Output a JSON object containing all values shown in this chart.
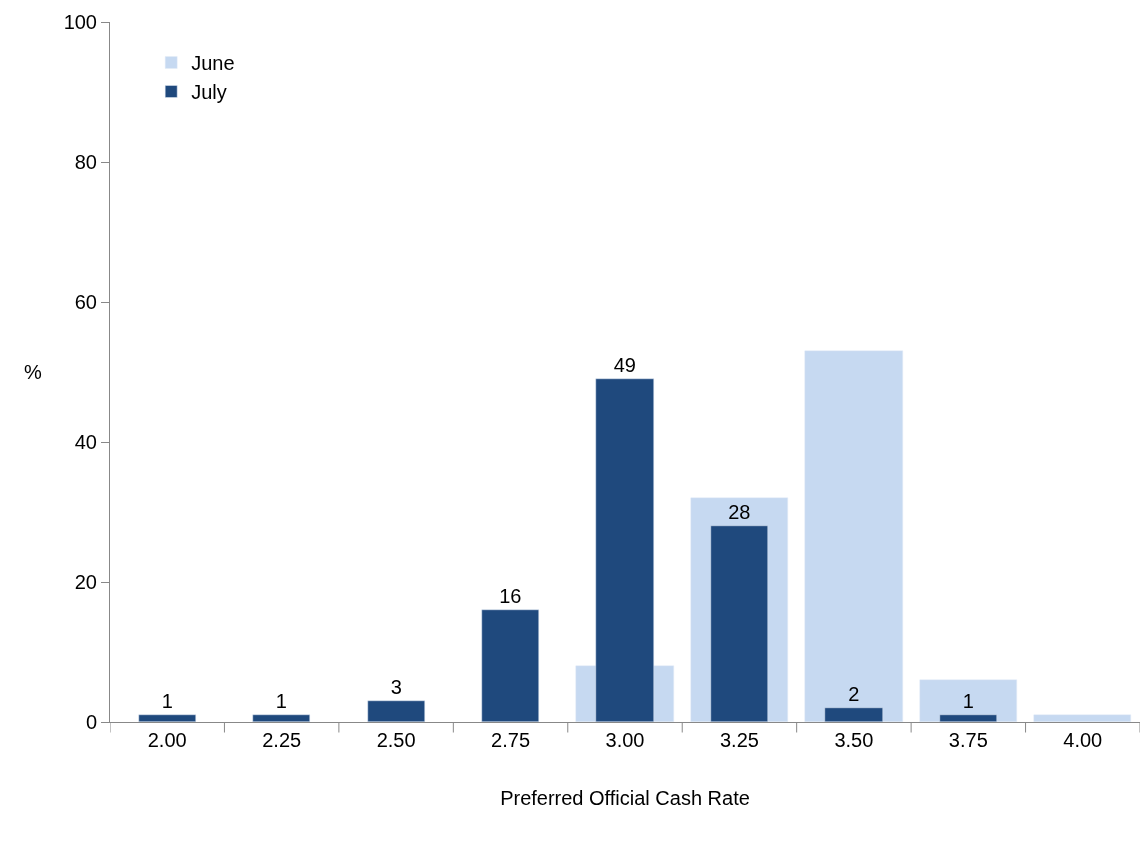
{
  "chart_data": {
    "type": "bar",
    "xlabel": "Preferred Official Cash Rate",
    "ylabel": "%",
    "categories": [
      "2.00",
      "2.25",
      "2.50",
      "2.75",
      "3.00",
      "3.25",
      "3.50",
      "3.75",
      "4.00"
    ],
    "series": [
      {
        "name": "June",
        "color": "#c6d9f1",
        "values": [
          null,
          null,
          null,
          null,
          8,
          32,
          53,
          6,
          1
        ]
      },
      {
        "name": "July",
        "color": "#1f497d",
        "values": [
          1,
          1,
          3,
          16,
          49,
          28,
          2,
          1,
          null
        ],
        "value_labels": [
          "1",
          "1",
          "3",
          "16",
          "49",
          "28",
          "2",
          "1",
          null
        ]
      }
    ],
    "ylim": [
      0,
      100
    ],
    "yticks": [
      0,
      20,
      40,
      60,
      80,
      100
    ],
    "legend": "top left"
  }
}
